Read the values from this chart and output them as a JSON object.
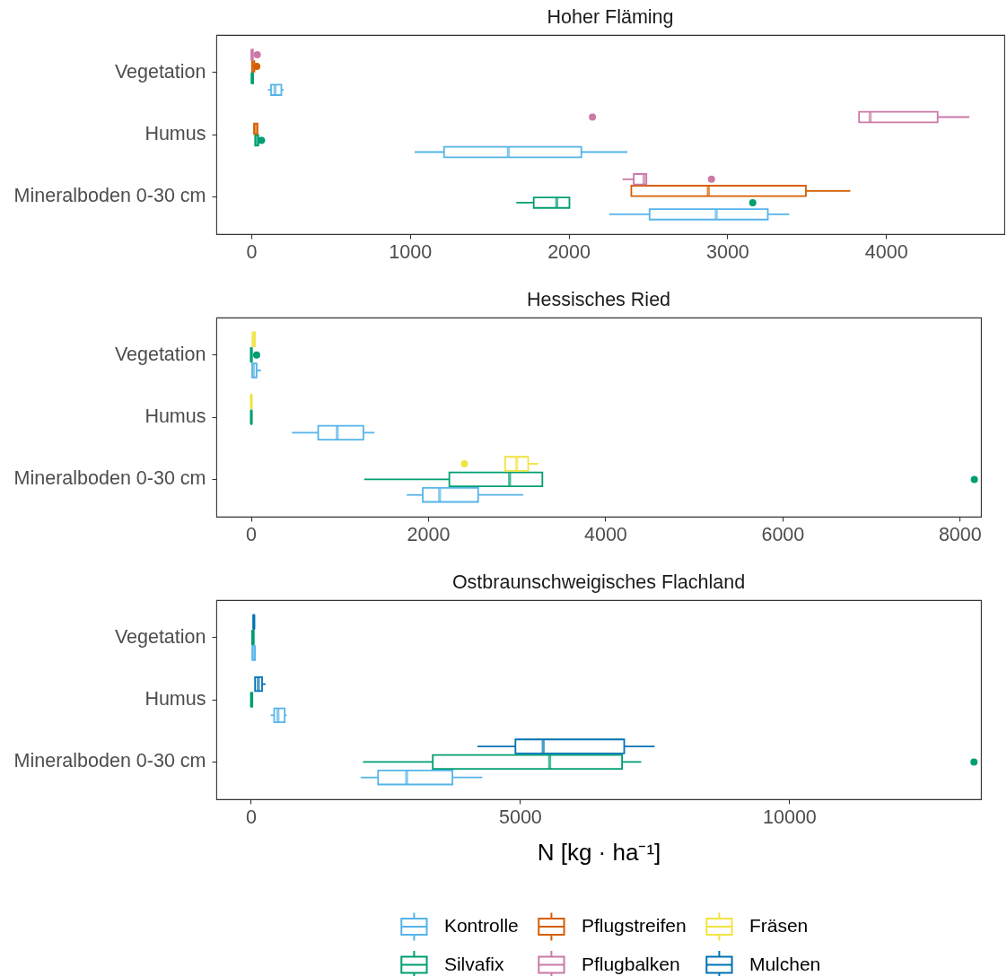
{
  "chart_data": [
    {
      "type": "box",
      "title": "Hoher Fläming",
      "orientation": "horizontal",
      "categories": [
        "Vegetation",
        "Humus",
        "Mineralboden 0-30 cm"
      ],
      "series": [
        {
          "name": "Kontrolle",
          "color": "#56b4e9",
          "boxes": [
            {
              "low": 105,
              "q1": 125,
              "median": 150,
              "q3": 190,
              "high": 205
            },
            {
              "low": 1030,
              "q1": 1215,
              "median": 1620,
              "q3": 2080,
              "high": 2370
            },
            {
              "low": 2255,
              "q1": 2510,
              "median": 2930,
              "q3": 3255,
              "high": 3390
            }
          ]
        },
        {
          "name": "Silvafix",
          "color": "#009e73",
          "boxes": [
            {
              "low": 3,
              "q1": 3,
              "median": 6,
              "q3": 12,
              "high": 12
            },
            {
              "low": 25,
              "q1": 25,
              "median": 32,
              "q3": 45,
              "high": 45,
              "outliers": [
                65
              ]
            },
            {
              "low": 1670,
              "q1": 1780,
              "median": 1925,
              "q3": 2005,
              "high": 2005,
              "outliers": [
                3160
              ]
            }
          ]
        },
        {
          "name": "Pflugstreifen",
          "color": "#d55e00",
          "boxes": [
            {
              "low": 5,
              "q1": 5,
              "median": 10,
              "q3": 20,
              "high": 20,
              "outliers": [
                35
              ]
            },
            {
              "low": 18,
              "q1": 18,
              "median": 25,
              "q3": 40,
              "high": 40
            },
            {
              "low": 2395,
              "q1": 2395,
              "median": 2880,
              "q3": 3495,
              "high": 3775
            }
          ]
        },
        {
          "name": "Pflugbalken",
          "color": "#cc79a7",
          "boxes": [
            {
              "low": 2,
              "q1": 2,
              "median": 5,
              "q3": 10,
              "high": 10,
              "outliers": [
                38
              ]
            },
            {
              "low": 3830,
              "q1": 3830,
              "median": 3900,
              "q3": 4325,
              "high": 4525,
              "outliers": [
                2150
              ]
            },
            {
              "low": 2340,
              "q1": 2410,
              "median": 2475,
              "q3": 2490,
              "high": 2490,
              "outliers": [
                2900
              ]
            }
          ]
        }
      ],
      "xlim": [
        -220,
        4745
      ],
      "xticks": [
        0,
        1000,
        2000,
        3000,
        4000
      ],
      "legend": "bottom"
    },
    {
      "type": "box",
      "title": "Hessisches Ried",
      "orientation": "horizontal",
      "categories": [
        "Vegetation",
        "Humus",
        "Mineralboden 0-30 cm"
      ],
      "series": [
        {
          "name": "Kontrolle",
          "color": "#56b4e9",
          "boxes": [
            {
              "low": 15,
              "q1": 15,
              "median": 30,
              "q3": 65,
              "high": 115
            },
            {
              "low": 465,
              "q1": 760,
              "median": 975,
              "q3": 1270,
              "high": 1395
            },
            {
              "low": 1760,
              "q1": 1940,
              "median": 2130,
              "q3": 2565,
              "high": 3075
            }
          ]
        },
        {
          "name": "Silvafix",
          "color": "#009e73",
          "boxes": [
            {
              "low": 2,
              "q1": 2,
              "median": 5,
              "q3": 10,
              "high": 10,
              "outliers": [
                65
              ]
            },
            {
              "low": 3,
              "q1": 3,
              "median": 5,
              "q3": 8,
              "high": 8
            },
            {
              "low": 1280,
              "q1": 2240,
              "median": 2920,
              "q3": 3290,
              "high": 3290,
              "outliers": [
                8165
              ]
            }
          ]
        },
        {
          "name": "Fräsen",
          "color": "#f0e442",
          "boxes": [
            {
              "low": 20,
              "q1": 20,
              "median": 30,
              "q3": 45,
              "high": 45
            },
            {
              "low": 3,
              "q1": 3,
              "median": 5,
              "q3": 8,
              "high": 8
            },
            {
              "low": 2870,
              "q1": 2870,
              "median": 3000,
              "q3": 3130,
              "high": 3245,
              "outliers": [
                2410
              ]
            }
          ]
        }
      ],
      "xlim": [
        -390,
        8240
      ],
      "xticks": [
        0,
        2000,
        4000,
        6000,
        8000
      ],
      "legend": "bottom"
    },
    {
      "type": "box",
      "title": "Ostbraunschweigisches Flachland",
      "orientation": "horizontal",
      "categories": [
        "Vegetation",
        "Humus",
        "Mineralboden 0-30 cm"
      ],
      "series": [
        {
          "name": "Kontrolle",
          "color": "#56b4e9",
          "boxes": [
            {
              "low": 30,
              "q1": 30,
              "median": 50,
              "q3": 80,
              "high": 80
            },
            {
              "low": 370,
              "q1": 435,
              "median": 505,
              "q3": 630,
              "high": 665
            },
            {
              "low": 2040,
              "q1": 2365,
              "median": 2895,
              "q3": 3745,
              "high": 4300
            }
          ]
        },
        {
          "name": "Silvafix",
          "color": "#009e73",
          "boxes": [
            {
              "low": 25,
              "q1": 25,
              "median": 40,
              "q3": 55,
              "high": 55
            },
            {
              "low": 5,
              "q1": 5,
              "median": 15,
              "q3": 30,
              "high": 30
            },
            {
              "low": 2085,
              "q1": 3380,
              "median": 5550,
              "q3": 6895,
              "high": 7250,
              "outliers": [
                13430
              ]
            }
          ]
        },
        {
          "name": "Mulchen",
          "color": "#0072b2",
          "boxes": [
            {
              "low": 50,
              "q1": 50,
              "median": 55,
              "q3": 65,
              "high": 65
            },
            {
              "low": 80,
              "q1": 80,
              "median": 140,
              "q3": 210,
              "high": 275
            },
            {
              "low": 4210,
              "q1": 4915,
              "median": 5430,
              "q3": 6935,
              "high": 7500
            }
          ]
        }
      ],
      "xlim": [
        -640,
        13560
      ],
      "xticks": [
        0,
        5000,
        10000
      ],
      "xlabel": "N [kg · ha⁻¹]",
      "legend": "bottom"
    }
  ]
}
